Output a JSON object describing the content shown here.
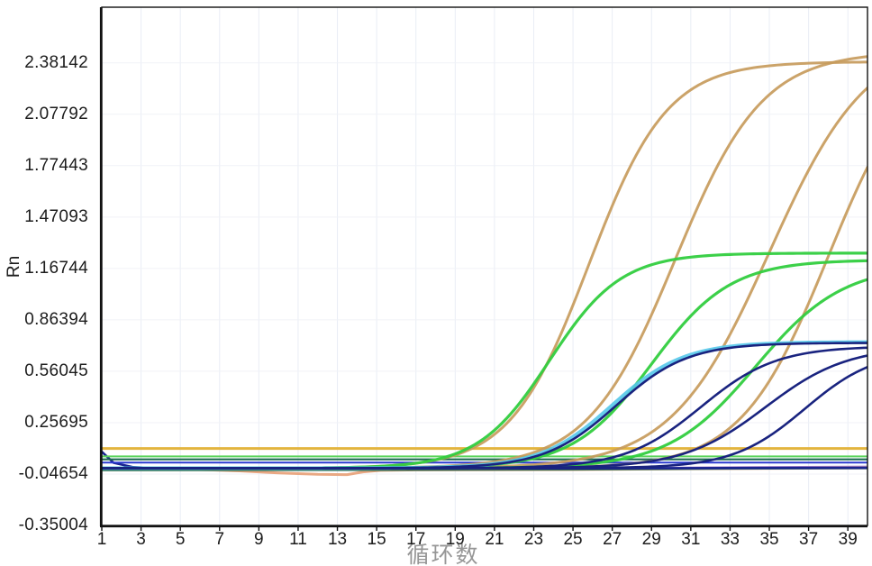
{
  "chart_data": {
    "type": "line",
    "title": "",
    "xlabel": "循环数",
    "ylabel": "Rn",
    "x_range": [
      1,
      40
    ],
    "y_range": [
      -0.35004,
      2.71
    ],
    "grid": true,
    "legend": "none",
    "x_ticks": [
      1,
      3,
      5,
      7,
      9,
      11,
      13,
      15,
      17,
      19,
      21,
      23,
      25,
      27,
      29,
      31,
      33,
      35,
      37,
      39
    ],
    "y_ticks": [
      {
        "label": "2.38142",
        "value": 2.38142
      },
      {
        "label": "2.07792",
        "value": 2.07792
      },
      {
        "label": "1.77443",
        "value": 1.77443
      },
      {
        "label": "1.47093",
        "value": 1.47093
      },
      {
        "label": "1.16744",
        "value": 1.16744
      },
      {
        "label": "0.86394",
        "value": 0.86394
      },
      {
        "label": "0.56045",
        "value": 0.56045
      },
      {
        "label": "0.25695",
        "value": 0.25695
      },
      {
        "label": "-0.04654",
        "value": -0.04654
      },
      {
        "label": "-0.35004",
        "value": -0.35004
      }
    ],
    "threshold_lines": [
      {
        "name": "threshold-gold",
        "color": "#E3B43E",
        "value": 0.104,
        "width": 3
      },
      {
        "name": "threshold-lightgreen",
        "color": "#5BD45B",
        "value": 0.058,
        "width": 2
      },
      {
        "name": "threshold-teal",
        "color": "#1E6B50",
        "value": 0.04,
        "width": 2.2
      },
      {
        "name": "threshold-blue",
        "color": "#2B3BD0",
        "value": 0.021,
        "width": 2
      }
    ],
    "series": [
      {
        "name": "orange-curve-1",
        "group": "FAM-orange",
        "color": "#C79B5C",
        "width": 3,
        "opacity": 0.92,
        "model": "sigmoid",
        "base": -0.012,
        "amp": 2.4,
        "mid": 25.8,
        "k": 0.5
      },
      {
        "name": "orange-curve-2",
        "group": "FAM-orange",
        "color": "#C79B5C",
        "width": 3,
        "opacity": 0.92,
        "model": "sigmoid",
        "base": -0.012,
        "amp": 2.46,
        "mid": 30.2,
        "k": 0.45
      },
      {
        "name": "orange-curve-3",
        "group": "FAM-orange",
        "color": "#C79B5C",
        "width": 3,
        "opacity": 0.92,
        "model": "sigmoid",
        "base": -0.012,
        "amp": 2.55,
        "mid": 35.0,
        "k": 0.4
      },
      {
        "name": "orange-curve-4",
        "group": "FAM-orange",
        "color": "#C79B5C",
        "width": 3,
        "opacity": 0.92,
        "model": "sigmoid",
        "base": -0.012,
        "amp": 2.5,
        "mid": 38.0,
        "k": 0.45
      },
      {
        "name": "green-curve-1",
        "group": "VIC-green",
        "color": "#32CD3F",
        "width": 3.2,
        "opacity": 0.95,
        "model": "sigmoid",
        "base": -0.012,
        "amp": 1.27,
        "mid": 23.8,
        "k": 0.55
      },
      {
        "name": "green-curve-2",
        "group": "VIC-green",
        "color": "#32CD3F",
        "width": 3.2,
        "opacity": 0.95,
        "model": "sigmoid",
        "base": -0.012,
        "amp": 1.23,
        "mid": 29.0,
        "k": 0.5
      },
      {
        "name": "green-curve-3",
        "group": "VIC-green",
        "color": "#32CD3F",
        "width": 3.2,
        "opacity": 0.95,
        "model": "sigmoid",
        "base": -0.012,
        "amp": 1.2,
        "mid": 34.3,
        "k": 0.45
      },
      {
        "name": "cyan-curve-1",
        "group": "cyan",
        "color": "#55C8EA",
        "width": 4,
        "opacity": 0.9,
        "model": "sigmoid",
        "base": -0.012,
        "amp": 0.745,
        "mid": 27.0,
        "k": 0.55
      },
      {
        "name": "navy-curve-1",
        "group": "ROX-navy",
        "color": "#19237F",
        "width": 2.6,
        "opacity": 1,
        "model": "sigmoid",
        "base": -0.012,
        "amp": 0.74,
        "mid": 27.2,
        "k": 0.55
      },
      {
        "name": "navy-curve-2",
        "group": "ROX-navy",
        "color": "#19237F",
        "width": 2.6,
        "opacity": 1,
        "model": "sigmoid",
        "base": -0.012,
        "amp": 0.72,
        "mid": 31.5,
        "k": 0.52
      },
      {
        "name": "navy-curve-3",
        "group": "ROX-navy",
        "color": "#19237F",
        "width": 2.6,
        "opacity": 1,
        "model": "sigmoid",
        "base": -0.012,
        "amp": 0.72,
        "mid": 34.8,
        "k": 0.48
      },
      {
        "name": "navy-curve-4",
        "group": "ROX-navy",
        "color": "#19237F",
        "width": 2.6,
        "opacity": 1,
        "model": "sigmoid",
        "base": -0.012,
        "amp": 0.7,
        "mid": 36.8,
        "k": 0.55
      }
    ],
    "baseline_series": [
      {
        "name": "baseline-purple",
        "color": "#9B79C9",
        "width": 3.4,
        "opacity": 0.95,
        "points": [
          [
            1,
            -0.016
          ],
          [
            12,
            -0.018
          ],
          [
            20,
            -0.018
          ],
          [
            28,
            -0.014
          ],
          [
            34,
            -0.009
          ],
          [
            40,
            -0.006
          ]
        ]
      },
      {
        "name": "baseline-salmon",
        "color": "#E8A37C",
        "width": 3,
        "opacity": 0.95,
        "points": [
          [
            1,
            -0.012
          ],
          [
            5,
            -0.016
          ],
          [
            8,
            -0.028
          ],
          [
            10,
            -0.04
          ],
          [
            12,
            -0.048
          ],
          [
            13.5,
            -0.05
          ],
          [
            14.3,
            -0.034
          ],
          [
            15.2,
            -0.025
          ],
          [
            17,
            -0.022
          ],
          [
            25,
            -0.02
          ],
          [
            33,
            -0.014
          ],
          [
            40,
            -0.01
          ]
        ]
      },
      {
        "name": "baseline-darkgreen",
        "color": "#2F6B4A",
        "width": 2.2,
        "opacity": 0.95,
        "points": [
          [
            1,
            -0.024
          ],
          [
            15,
            -0.023
          ],
          [
            25,
            -0.02
          ],
          [
            33,
            -0.015
          ],
          [
            40,
            -0.012
          ]
        ]
      },
      {
        "name": "baseline-navy",
        "color": "#1A2490",
        "width": 2.6,
        "opacity": 1,
        "points": [
          [
            1,
            0.085
          ],
          [
            1.6,
            0.02
          ],
          [
            2.6,
            -0.006
          ],
          [
            4,
            -0.013
          ],
          [
            15,
            -0.014
          ],
          [
            25,
            -0.013
          ],
          [
            33,
            -0.011
          ],
          [
            40,
            -0.01
          ]
        ]
      }
    ]
  }
}
